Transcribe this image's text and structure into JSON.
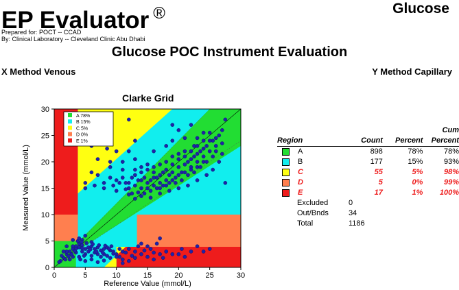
{
  "header": {
    "app_title": "EP Evaluator",
    "trademark": "®",
    "analyte": "Glucose",
    "prepared_for": "Prepared for: POCT -- CCAD",
    "prepared_by": "By: Clinical Laboratory -- Cleveland Clinic Abu Dhabi",
    "report_title": "Glucose POC Instrument Evaluation",
    "x_method": "X Method  Venous",
    "y_method": "Y Method  Capillary"
  },
  "chart_data": {
    "type": "scatter",
    "title": "Clarke Grid",
    "xlabel": "Reference Value (mmol/L)",
    "ylabel": "Measured Value (mmol/L)",
    "xlim": [
      0,
      30
    ],
    "ylim": [
      0,
      30
    ],
    "xticks": [
      0,
      5,
      10,
      15,
      20,
      25,
      30
    ],
    "yticks": [
      0,
      5,
      10,
      15,
      20,
      25,
      30
    ],
    "legend": {
      "placement": "top-left",
      "entries": [
        {
          "label": "A 78%",
          "color": "#22dd33"
        },
        {
          "label": "B 15%",
          "color": "#11eeee"
        },
        {
          "label": "C 5%",
          "color": "#ffff11"
        },
        {
          "label": "D 0%",
          "color": "#ff7f4f"
        },
        {
          "label": "E 1%",
          "color": "#ee1c1c"
        }
      ]
    },
    "region_colors": {
      "A": "#22dd33",
      "B": "#11eeee",
      "C": "#ffff11",
      "D": "#ff7f4f",
      "E": "#ee1c1c"
    },
    "point_color": "#1f22a8",
    "series": [
      {
        "points": [
          [
            12,
            16
          ],
          [
            13,
            15.5
          ],
          [
            13.5,
            16.5
          ],
          [
            14,
            15
          ],
          [
            14.5,
            17
          ],
          [
            15,
            16
          ],
          [
            15.5,
            16.5
          ],
          [
            16,
            15.5
          ],
          [
            16.5,
            17
          ],
          [
            17,
            16
          ],
          [
            17.5,
            18
          ],
          [
            18,
            16.5
          ],
          [
            18.5,
            17.5
          ],
          [
            19,
            18
          ],
          [
            19.5,
            17
          ],
          [
            20,
            19
          ],
          [
            20.5,
            18
          ],
          [
            21,
            19.5
          ],
          [
            21.5,
            20
          ],
          [
            22,
            19
          ],
          [
            22.5,
            21
          ],
          [
            23,
            20
          ],
          [
            23.5,
            22
          ],
          [
            24,
            21
          ],
          [
            24.5,
            23
          ],
          [
            25,
            22
          ],
          [
            25.5,
            24
          ],
          [
            26,
            23
          ],
          [
            26.5,
            25
          ],
          [
            27,
            26
          ],
          [
            27.5,
            28
          ],
          [
            27.5,
            16
          ],
          [
            12.5,
            17
          ],
          [
            13,
            17.5
          ],
          [
            14,
            18
          ],
          [
            14,
            16.5
          ],
          [
            15,
            18.5
          ],
          [
            15,
            15
          ],
          [
            16,
            18
          ],
          [
            16,
            17
          ],
          [
            17,
            17.5
          ],
          [
            17,
            15
          ],
          [
            18,
            18.5
          ],
          [
            18,
            15.5
          ],
          [
            19,
            16.5
          ],
          [
            19,
            19.5
          ],
          [
            20,
            17.5
          ],
          [
            20,
            20.5
          ],
          [
            21,
            18
          ],
          [
            21,
            21
          ],
          [
            22,
            20.5
          ],
          [
            22,
            18.5
          ],
          [
            23,
            21.5
          ],
          [
            23,
            19
          ],
          [
            24,
            22.5
          ],
          [
            24,
            20
          ],
          [
            12,
            15
          ],
          [
            11.5,
            16
          ],
          [
            11,
            17
          ],
          [
            10.5,
            16
          ],
          [
            10,
            16.5
          ],
          [
            9.5,
            15.5
          ],
          [
            9,
            17
          ],
          [
            8,
            16
          ],
          [
            7,
            17.5
          ],
          [
            6,
            18
          ],
          [
            5,
            15
          ],
          [
            14.5,
            14
          ],
          [
            15.5,
            14.5
          ],
          [
            16.5,
            15
          ],
          [
            17.5,
            15.5
          ],
          [
            18.5,
            16
          ],
          [
            19.5,
            16
          ],
          [
            20.5,
            16.5
          ],
          [
            21.5,
            17.5
          ],
          [
            22.5,
            18
          ],
          [
            23.5,
            19
          ],
          [
            24.5,
            20
          ],
          [
            25.5,
            21
          ],
          [
            26,
            22
          ],
          [
            25,
            24
          ],
          [
            24,
            24
          ],
          [
            23,
            23
          ],
          [
            22,
            22
          ],
          [
            21,
            22
          ],
          [
            20,
            21.5
          ],
          [
            19,
            21
          ],
          [
            18,
            20
          ],
          [
            17,
            19.5
          ],
          [
            16,
            19
          ],
          [
            15,
            19.5
          ],
          [
            14,
            19
          ],
          [
            13,
            18.5
          ],
          [
            12.5,
            14
          ],
          [
            13.5,
            14.2
          ],
          [
            10,
            14.5
          ],
          [
            9,
            20
          ],
          [
            8.5,
            22.5
          ],
          [
            7,
            25
          ],
          [
            6,
            23
          ],
          [
            8,
            29
          ],
          [
            12,
            28
          ],
          [
            13,
            24
          ],
          [
            12,
            22
          ],
          [
            13,
            20.5
          ],
          [
            11,
            20
          ],
          [
            10,
            22
          ],
          [
            16,
            22
          ],
          [
            18,
            23
          ],
          [
            19,
            24
          ],
          [
            19,
            27
          ],
          [
            22,
            27
          ],
          [
            21,
            24.5
          ],
          [
            23,
            24.5
          ],
          [
            20,
            26
          ],
          [
            11,
            18.5
          ],
          [
            9,
            19
          ],
          [
            7,
            20.5
          ],
          [
            5,
            16
          ],
          [
            6.5,
            15.5
          ],
          [
            8,
            15
          ],
          [
            11.5,
            14.8
          ],
          [
            13,
            13
          ],
          [
            12,
            13.8
          ],
          [
            14,
            13.5
          ],
          [
            15.5,
            13.2
          ],
          [
            17,
            14
          ],
          [
            18.5,
            14.5
          ],
          [
            20,
            15
          ],
          [
            21.5,
            15.5
          ],
          [
            23,
            16.5
          ],
          [
            24.5,
            17.5
          ],
          [
            25.5,
            18.5
          ],
          [
            26.5,
            20
          ],
          [
            27,
            21.5
          ],
          [
            27,
            23.5
          ],
          [
            26,
            24.5
          ],
          [
            25,
            25.5
          ],
          [
            24,
            25.5
          ],
          [
            22.5,
            23
          ],
          [
            1,
            1.2
          ],
          [
            1.5,
            1.8
          ],
          [
            2,
            2.5
          ],
          [
            2.5,
            3
          ],
          [
            3,
            3.5
          ],
          [
            3.5,
            4
          ],
          [
            4,
            3.8
          ],
          [
            4.5,
            4.2
          ],
          [
            5,
            3.5
          ],
          [
            5.5,
            3.8
          ],
          [
            6,
            4
          ],
          [
            6.5,
            3.5
          ],
          [
            7,
            3.8
          ],
          [
            7.5,
            3.2
          ],
          [
            8,
            3.5
          ],
          [
            8.5,
            3.8
          ],
          [
            9,
            3.2
          ],
          [
            9.5,
            3
          ],
          [
            10,
            2.5
          ],
          [
            10.5,
            2
          ],
          [
            11,
            1.5
          ],
          [
            2.5,
            1.5
          ],
          [
            3,
            2
          ],
          [
            3.5,
            2.8
          ],
          [
            4,
            2
          ],
          [
            4.5,
            3
          ],
          [
            5,
            2.5
          ],
          [
            5.5,
            3
          ],
          [
            6,
            2.2
          ],
          [
            6.5,
            2.8
          ],
          [
            7,
            2.5
          ],
          [
            7.5,
            2
          ],
          [
            8,
            2.5
          ],
          [
            8.5,
            2.2
          ],
          [
            9,
            1.8
          ],
          [
            3,
            4
          ],
          [
            3.5,
            3.5
          ],
          [
            4,
            4.5
          ],
          [
            4.5,
            3.6
          ],
          [
            2,
            3
          ],
          [
            2.8,
            2.5
          ],
          [
            1.8,
            1.5
          ],
          [
            4.2,
            1.5
          ],
          [
            5,
            1.2
          ],
          [
            6,
            1.5
          ],
          [
            7,
            1
          ],
          [
            8,
            1.3
          ],
          [
            3.8,
            5
          ],
          [
            4.5,
            5.2
          ],
          [
            6,
            4.8
          ],
          [
            10.5,
            3.5
          ],
          [
            11,
            3
          ],
          [
            12,
            3.5
          ],
          [
            13,
            3
          ],
          [
            14,
            2.5
          ],
          [
            15,
            2
          ],
          [
            16,
            2.8
          ],
          [
            17,
            2.5
          ],
          [
            12.5,
            2.2
          ],
          [
            11.5,
            2.8
          ],
          [
            10,
            2
          ],
          [
            9.5,
            2.6
          ],
          [
            13.5,
            4
          ],
          [
            15,
            4
          ],
          [
            16.5,
            4.5
          ],
          [
            14,
            4.5
          ],
          [
            17,
            5.5
          ],
          [
            18,
            3
          ],
          [
            19,
            2.5
          ],
          [
            20,
            2.5
          ],
          [
            22,
            3
          ],
          [
            21,
            2
          ],
          [
            20.5,
            3.5
          ],
          [
            16,
            1.5
          ],
          [
            17.5,
            1.8
          ],
          [
            13,
            1.8
          ],
          [
            12,
            1.2
          ],
          [
            11,
            0.8
          ],
          [
            14.5,
            3.2
          ],
          [
            15.5,
            3.5
          ],
          [
            5,
            6
          ],
          [
            4,
            5.5
          ],
          [
            3,
            5.2
          ],
          [
            1.5,
            3
          ],
          [
            2,
            4
          ],
          [
            4.8,
            2.2
          ],
          [
            5.8,
            3.4
          ],
          [
            6.8,
            3
          ],
          [
            7.8,
            2.8
          ],
          [
            8.8,
            3.5
          ],
          [
            9.2,
            4
          ],
          [
            3.3,
            3.1
          ],
          [
            2.3,
            2.1
          ],
          [
            1.2,
            2.2
          ],
          [
            0.8,
            1
          ],
          [
            4.4,
            4.8
          ],
          [
            5.2,
            4.6
          ],
          [
            6.2,
            4.4
          ],
          [
            7.2,
            4.2
          ],
          [
            8.2,
            4.1
          ],
          [
            23,
            4
          ],
          [
            24,
            3
          ],
          [
            25,
            3.5
          ]
        ]
      }
    ]
  },
  "table": {
    "headers": {
      "region": "Region",
      "count": "Count",
      "percent": "Percent",
      "cum_line1": "Cum",
      "cum_line2": "Percent"
    },
    "rows": [
      {
        "swatch": "#22dd33",
        "region": "A",
        "count": "898",
        "percent": "78%",
        "cum": "78%"
      },
      {
        "swatch": "#11eeee",
        "region": "B",
        "count": "177",
        "percent": "15%",
        "cum": "93%"
      },
      {
        "swatch": "#ffff11",
        "region": "C",
        "count": "55",
        "percent": "5%",
        "cum": "98%"
      },
      {
        "swatch": "#ff7f4f",
        "region": "D",
        "count": "5",
        "percent": "0%",
        "cum": "99%"
      },
      {
        "swatch": "#ee1c1c",
        "region": "E",
        "count": "17",
        "percent": "1%",
        "cum": "100%"
      }
    ],
    "extra": [
      {
        "label": "Excluded",
        "value": "0"
      },
      {
        "label": "Out/Bnds",
        "value": "34"
      },
      {
        "label": "Total",
        "value": "1186"
      }
    ]
  }
}
